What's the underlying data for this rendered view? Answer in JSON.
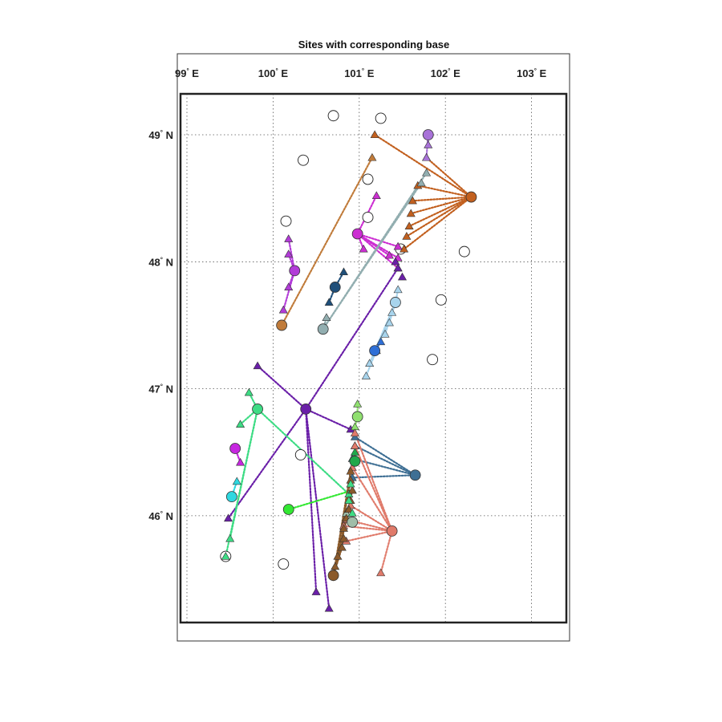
{
  "chart_data": {
    "type": "scatter",
    "title": "Sites with corresponding base",
    "xlabel": "",
    "ylabel": "",
    "x_ticks": [
      {
        "value": 99,
        "label": "99",
        "suffix": " E"
      },
      {
        "value": 100,
        "label": "100",
        "suffix": " E"
      },
      {
        "value": 101,
        "label": "101",
        "suffix": " E"
      },
      {
        "value": 102,
        "label": "102",
        "suffix": " E"
      },
      {
        "value": 103,
        "label": "103",
        "suffix": " E"
      }
    ],
    "y_ticks": [
      {
        "value": 49,
        "label": "49",
        "suffix": " N"
      },
      {
        "value": 48,
        "label": "48",
        "suffix": " N"
      },
      {
        "value": 47,
        "label": "47",
        "suffix": " N"
      },
      {
        "value": 46,
        "label": "46",
        "suffix": " N"
      }
    ],
    "xlim": [
      99.1,
      102.8
    ],
    "ylim": [
      45.05,
      49.32
    ],
    "grid": true,
    "projection": "map (lon/lat)",
    "groups": [
      {
        "color": "#C2601F",
        "base": [
          102.3,
          48.51
        ],
        "sites": [
          [
            101.18,
            49.0
          ],
          [
            101.78,
            48.82
          ],
          [
            101.68,
            48.6
          ],
          [
            101.62,
            48.48
          ],
          [
            101.6,
            48.38
          ],
          [
            101.58,
            48.28
          ],
          [
            101.55,
            48.2
          ],
          [
            101.52,
            48.1
          ]
        ]
      },
      {
        "color": "#C07B3A",
        "base": [
          100.1,
          47.5
        ],
        "sites": [
          [
            101.15,
            48.82
          ]
        ]
      },
      {
        "color": "#A872D8",
        "base": [
          101.8,
          49.0
        ],
        "sites": [
          [
            101.8,
            48.92
          ],
          [
            101.78,
            48.82
          ]
        ]
      },
      {
        "color": "#B23BD8",
        "base": [
          100.25,
          47.93
        ],
        "sites": [
          [
            100.18,
            48.18
          ],
          [
            100.18,
            48.06
          ],
          [
            100.18,
            47.8
          ],
          [
            100.12,
            47.62
          ]
        ]
      },
      {
        "color": "#CC2ED2",
        "base": [
          100.98,
          48.22
        ],
        "sites": [
          [
            101.2,
            48.52
          ],
          [
            101.05,
            48.1
          ],
          [
            101.45,
            48.12
          ],
          [
            101.45,
            48.03
          ],
          [
            101.45,
            47.95
          ],
          [
            101.35,
            48.05
          ]
        ]
      },
      {
        "color": "#92AEB0",
        "base": [
          100.58,
          47.47
        ],
        "sites": [
          [
            101.78,
            48.7
          ],
          [
            101.72,
            48.62
          ],
          [
            100.62,
            47.56
          ]
        ]
      },
      {
        "color": "#1F4F7A",
        "base": [
          100.72,
          47.8
        ],
        "sites": [
          [
            100.82,
            47.92
          ],
          [
            100.65,
            47.68
          ]
        ]
      },
      {
        "color": "#A8D4EC",
        "base": [
          101.42,
          47.68
        ],
        "sites": [
          [
            101.45,
            47.78
          ],
          [
            101.38,
            47.6
          ],
          [
            101.35,
            47.52
          ],
          [
            101.3,
            47.43
          ],
          [
            101.2,
            47.3
          ],
          [
            101.12,
            47.2
          ],
          [
            101.08,
            47.1
          ]
        ]
      },
      {
        "color": "#2E6FD6",
        "base": [
          101.18,
          47.3
        ],
        "sites": [
          [
            101.25,
            47.37
          ]
        ]
      },
      {
        "color": "#6A1FA8",
        "base": [
          100.38,
          46.84
        ],
        "sites": [
          [
            99.82,
            47.18
          ],
          [
            101.45,
            47.95
          ],
          [
            99.48,
            45.98
          ],
          [
            100.5,
            45.4
          ],
          [
            100.65,
            45.27
          ],
          [
            100.9,
            46.68
          ]
        ]
      },
      {
        "color": "#3DDC84",
        "base": [
          99.82,
          46.84
        ],
        "sites": [
          [
            99.72,
            46.97
          ],
          [
            99.62,
            46.72
          ],
          [
            99.5,
            45.82
          ],
          [
            99.45,
            45.68
          ],
          [
            100.88,
            46.17
          ]
        ]
      },
      {
        "color": "#C627E0",
        "base": [
          99.56,
          46.53
        ],
        "sites": [
          [
            99.62,
            46.42
          ]
        ]
      },
      {
        "color": "#2ED8E0",
        "base": [
          99.52,
          46.15
        ],
        "sites": [
          [
            99.58,
            46.27
          ]
        ]
      },
      {
        "color": "#32E832",
        "base": [
          100.18,
          46.05
        ],
        "sites": [
          [
            100.92,
            46.2
          ]
        ]
      },
      {
        "color": "#90E070",
        "base": [
          100.98,
          46.78
        ],
        "sites": [
          [
            100.98,
            46.88
          ],
          [
            100.95,
            46.7
          ]
        ]
      },
      {
        "color": "#3E6F94",
        "base": [
          101.65,
          46.32
        ],
        "sites": [
          [
            100.95,
            46.62
          ],
          [
            100.95,
            46.55
          ],
          [
            100.92,
            46.45
          ],
          [
            100.92,
            46.3
          ]
        ]
      },
      {
        "color": "#1FA84A",
        "base": [
          100.95,
          46.43
        ],
        "sites": [
          [
            100.95,
            46.5
          ]
        ]
      },
      {
        "color": "#E07A6A",
        "base": [
          101.38,
          45.88
        ],
        "sites": [
          [
            100.95,
            46.65
          ],
          [
            100.95,
            46.55
          ],
          [
            100.92,
            46.38
          ],
          [
            100.9,
            46.08
          ],
          [
            100.85,
            45.97
          ],
          [
            100.82,
            45.92
          ],
          [
            100.85,
            45.8
          ],
          [
            101.25,
            45.55
          ]
        ]
      },
      {
        "color": "#9FBDA8",
        "base": [
          100.92,
          45.95
        ],
        "sites": [
          [
            100.85,
            46.02
          ]
        ]
      },
      {
        "color": "#8B5A2B",
        "base": [
          100.7,
          45.53
        ],
        "sites": [
          [
            100.72,
            45.6
          ],
          [
            100.75,
            45.68
          ],
          [
            100.8,
            45.75
          ],
          [
            100.82,
            45.82
          ],
          [
            100.82,
            45.9
          ],
          [
            100.85,
            45.98
          ],
          [
            100.88,
            46.05
          ],
          [
            100.9,
            46.12
          ],
          [
            100.92,
            46.2
          ],
          [
            100.9,
            46.28
          ],
          [
            100.9,
            46.35
          ]
        ]
      }
    ],
    "extra_sites": [
      {
        "color": "#3DDC84",
        "points": [
          [
            100.88,
            46.12
          ],
          [
            100.9,
            46.25
          ],
          [
            100.92,
            46.02
          ]
        ]
      },
      {
        "color": "#6A1FA8",
        "points": [
          [
            101.5,
            47.88
          ],
          [
            101.42,
            48.0
          ]
        ]
      }
    ],
    "unassigned_sites": [
      [
        100.7,
        49.15
      ],
      [
        101.25,
        49.13
      ],
      [
        100.35,
        48.8
      ],
      [
        101.1,
        48.65
      ],
      [
        100.15,
        48.32
      ],
      [
        101.1,
        48.35
      ],
      [
        101.48,
        48.1
      ],
      [
        102.22,
        48.08
      ],
      [
        101.95,
        47.7
      ],
      [
        101.85,
        47.23
      ],
      [
        100.32,
        46.48
      ],
      [
        99.45,
        45.68
      ],
      [
        100.12,
        45.62
      ]
    ]
  }
}
